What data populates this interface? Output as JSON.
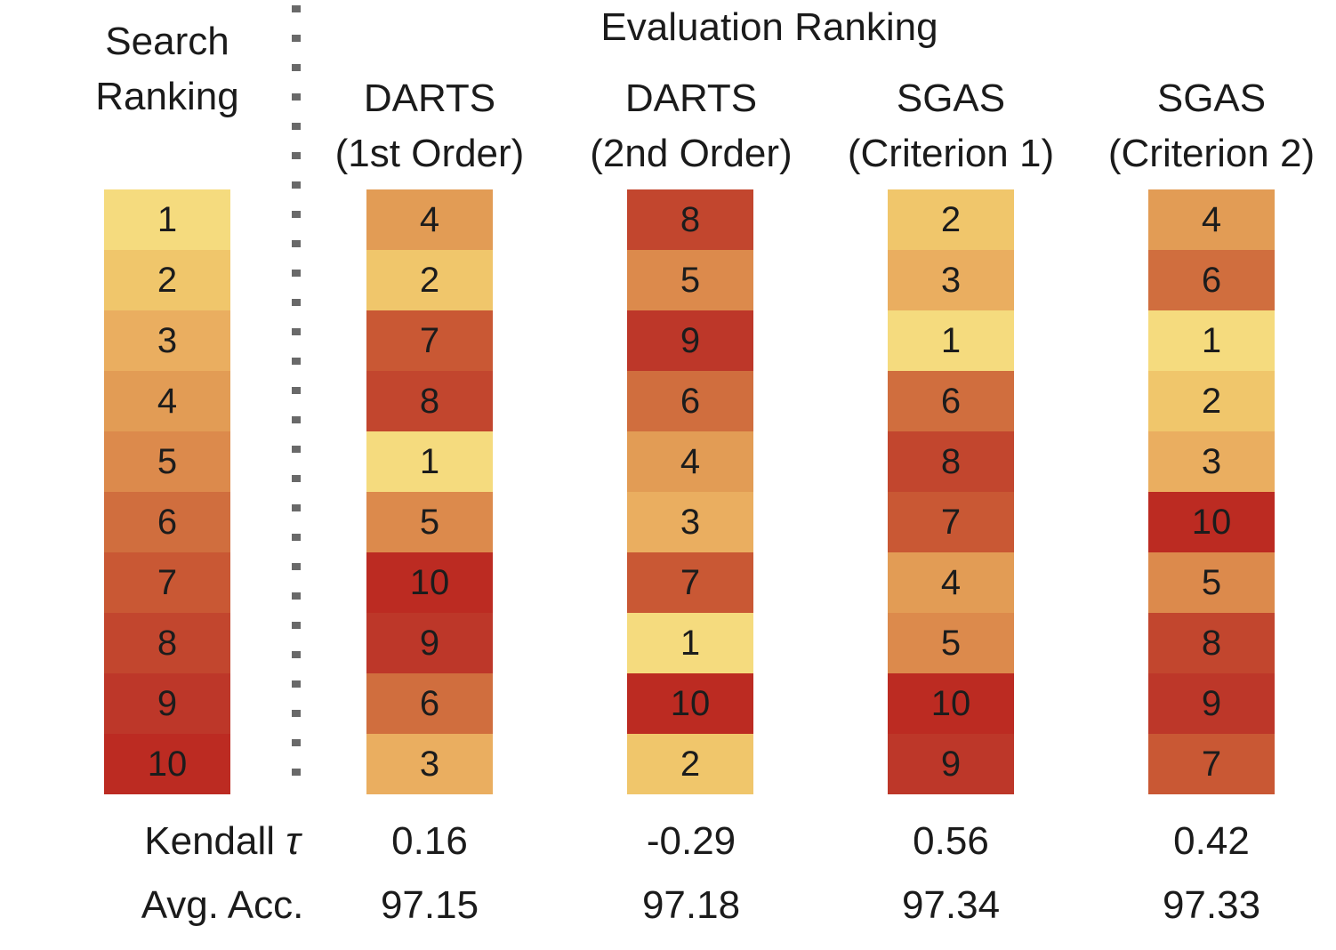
{
  "header": {
    "search_title_line1": "Search",
    "search_title_line2": "Ranking",
    "evaluation_title": "Evaluation Ranking"
  },
  "footer": {
    "kendall_label": "Kendall ",
    "tau_symbol": "τ",
    "avg_acc_label": "Avg. Acc."
  },
  "colors": {
    "background": "#FFFFFF",
    "text": "#1B1B1B",
    "dotted_separator": "#696969",
    "rank_scale": [
      "#F5DB7E",
      "#F0C66B",
      "#EAAE60",
      "#E29C55",
      "#DC8A4C",
      "#D06E3E",
      "#C95834",
      "#C2462E",
      "#BD3729",
      "#BC2B22"
    ]
  },
  "chart_data": {
    "type": "heatmap",
    "title": "Evaluation Ranking",
    "row_axis_label": "Search Ranking",
    "color_mapping": "cell color encodes rank value: 1 = light yellow, 10 = dark red",
    "search_ranking": [
      1,
      2,
      3,
      4,
      5,
      6,
      7,
      8,
      9,
      10
    ],
    "columns": [
      {
        "name": "DARTS (1st Order)",
        "name_line1": "DARTS",
        "name_line2": "(1st Order)",
        "evaluation_ranks": [
          4,
          2,
          7,
          8,
          1,
          5,
          10,
          9,
          6,
          3
        ],
        "kendall_tau": "0.16",
        "avg_acc": "97.15"
      },
      {
        "name": "DARTS (2nd Order)",
        "name_line1": "DARTS",
        "name_line2": "(2nd Order)",
        "evaluation_ranks": [
          8,
          5,
          9,
          6,
          4,
          3,
          7,
          1,
          10,
          2
        ],
        "kendall_tau": "-0.29",
        "avg_acc": "97.18"
      },
      {
        "name": "SGAS (Criterion 1)",
        "name_line1": "SGAS",
        "name_line2": "(Criterion 1)",
        "evaluation_ranks": [
          2,
          3,
          1,
          6,
          8,
          7,
          4,
          5,
          10,
          9
        ],
        "kendall_tau": "0.56",
        "avg_acc": "97.34"
      },
      {
        "name": "SGAS (Criterion 2)",
        "name_line1": "SGAS",
        "name_line2": "(Criterion 2)",
        "evaluation_ranks": [
          4,
          6,
          1,
          2,
          3,
          10,
          5,
          8,
          9,
          7
        ],
        "kendall_tau": "0.42",
        "avg_acc": "97.33"
      }
    ],
    "footer_rows": [
      {
        "label": "Kendall τ",
        "values": [
          "0.16",
          "-0.29",
          "0.56",
          "0.42"
        ]
      },
      {
        "label": "Avg. Acc.",
        "values": [
          "97.15",
          "97.18",
          "97.34",
          "97.33"
        ]
      }
    ]
  }
}
